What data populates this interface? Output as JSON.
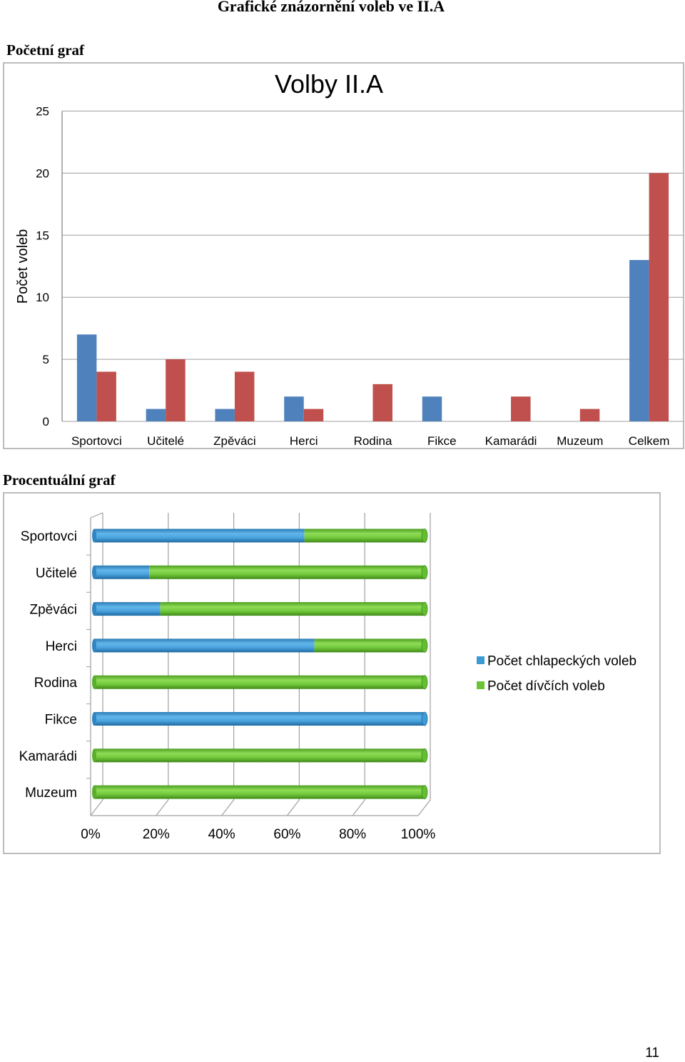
{
  "document": {
    "title": "Grafické znázornění voleb ve II.A",
    "section_count": "Početní graf",
    "section_percent": "Procentuální graf",
    "page_number": "11"
  },
  "chart_data": [
    {
      "type": "bar",
      "title": "Volby II.A",
      "ylabel": "Počet voleb",
      "xlabel": "",
      "ylim": [
        0,
        25
      ],
      "yticks": [
        0,
        5,
        10,
        15,
        20,
        25
      ],
      "grid": true,
      "legend": "none",
      "categories": [
        "Sportovci",
        "Učitelé",
        "Zpěváci",
        "Herci",
        "Rodina",
        "Fikce",
        "Kamarádi",
        "Muzeum",
        "Celkem"
      ],
      "series": [
        {
          "color": "#4f81bd",
          "values": [
            7,
            1,
            1,
            2,
            0,
            2,
            0,
            0,
            13
          ]
        },
        {
          "color": "#c0504d",
          "values": [
            4,
            5,
            4,
            1,
            3,
            0,
            2,
            1,
            20
          ]
        }
      ]
    },
    {
      "type": "bar",
      "orientation": "horizontal",
      "stacked": "percent",
      "title": "",
      "xlim": [
        0,
        100
      ],
      "xticks": [
        "0%",
        "20%",
        "40%",
        "60%",
        "80%",
        "100%"
      ],
      "grid": true,
      "legend": "right",
      "categories": [
        "Sportovci",
        "Učitelé",
        "Zpěváci",
        "Herci",
        "Rodina",
        "Fikce",
        "Kamarádi",
        "Muzeum"
      ],
      "series": [
        {
          "name": "Počet chlapeckých voleb",
          "color": "#3d9bd4",
          "values": [
            7,
            1,
            1,
            2,
            0,
            2,
            0,
            0
          ]
        },
        {
          "name": "Počet dívčích voleb",
          "color": "#6cc435",
          "values": [
            4,
            5,
            4,
            1,
            3,
            0,
            2,
            1
          ]
        }
      ]
    }
  ]
}
